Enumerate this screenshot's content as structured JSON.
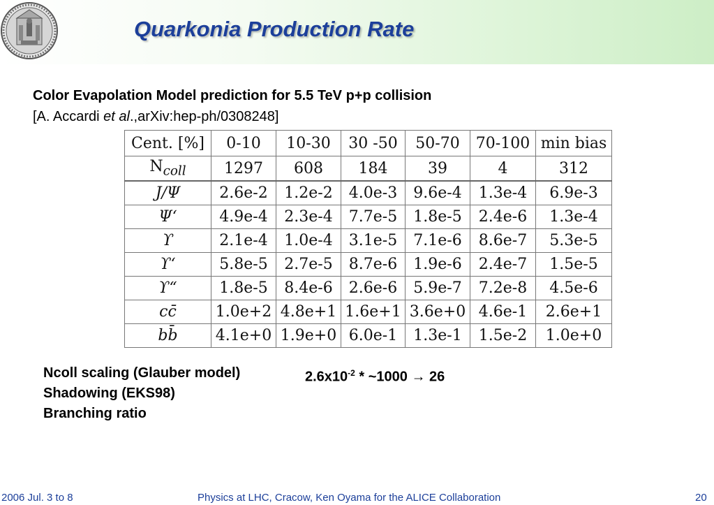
{
  "slide": {
    "title": "Quarkonia Production Rate",
    "subtitle_line1": "Color Evapolation Model prediction for 5.5 TeV p+p collision",
    "subtitle_line2_pre": "[A. Accardi ",
    "subtitle_line2_italic": "et al",
    "subtitle_line2_post": ".,arXiv:hep-ph/0308248]"
  },
  "table": {
    "header": [
      "Cent. [%]",
      "0-10",
      "10-30",
      "30 -50",
      "50-70",
      "70-100",
      "min bias"
    ],
    "ncoll_label_main": "N",
    "ncoll_label_sub": "coll",
    "ncoll_values": [
      "1297",
      "608",
      "184",
      "39",
      "4",
      "312"
    ],
    "rows": [
      {
        "label": "J/Ψ",
        "values": [
          "2.6e-2",
          "1.2e-2",
          "4.0e-3",
          "9.6e-4",
          "1.3e-4",
          "6.9e-3"
        ]
      },
      {
        "label": "Ψ‘",
        "values": [
          "4.9e-4",
          "2.3e-4",
          "7.7e-5",
          "1.8e-5",
          "2.4e-6",
          "1.3e-4"
        ]
      },
      {
        "label": "ϒ",
        "values": [
          "2.1e-4",
          "1.0e-4",
          "3.1e-5",
          "7.1e-6",
          "8.6e-7",
          "5.3e-5"
        ]
      },
      {
        "label": "ϒ‘",
        "values": [
          "5.8e-5",
          "2.7e-5",
          "8.7e-6",
          "1.9e-6",
          "2.4e-7",
          "1.5e-5"
        ]
      },
      {
        "label": "ϒ“",
        "values": [
          "1.8e-5",
          "8.4e-6",
          "2.6e-6",
          "5.9e-7",
          "7.2e-8",
          "4.5e-6"
        ]
      },
      {
        "label": "cc̄",
        "values": [
          "1.0e+2",
          "4.8e+1",
          "1.6e+1",
          "3.6e+0",
          "4.6e-1",
          "2.6e+1"
        ]
      },
      {
        "label": "bb̄",
        "values": [
          "4.1e+0",
          "1.9e+0",
          "6.0e-1",
          "1.3e-1",
          "1.5e-2",
          "1.0e+0"
        ]
      }
    ]
  },
  "notes": {
    "line1": "Ncoll scaling (Glauber model)",
    "calc_base": "2.6x10",
    "calc_exp": "-2",
    "calc_rest": " * ~1000 ",
    "calc_arrow": "→",
    "calc_result": " 26",
    "line2": "Shadowing (EKS98)",
    "line3": "Branching ratio"
  },
  "footer": {
    "date": "2006 Jul. 3 to 8",
    "event": "Physics at LHC, Cracow, Ken Oyama for the ALICE Collaboration",
    "page": "20"
  },
  "colors": {
    "title": "#1c3f9a",
    "footer_text": "#1c3f9a",
    "header_gradient_end": "#cdeec6"
  },
  "icons": {
    "logo": "university-seal-icon"
  }
}
